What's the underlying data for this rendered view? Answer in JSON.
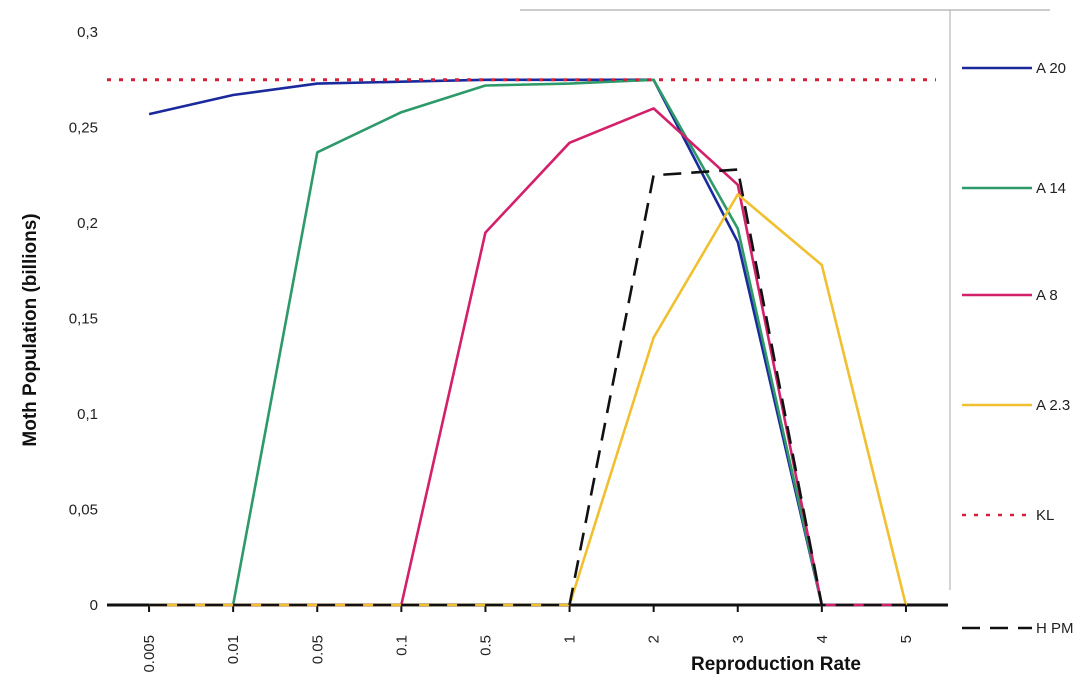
{
  "chart_data": {
    "type": "line",
    "xlabel": "Reproduction Rate",
    "ylabel": "Moth Population (billions)",
    "categories": [
      "0.005",
      "0.01",
      "0.05",
      "0.1",
      "0.5",
      "1",
      "2",
      "3",
      "4",
      "5"
    ],
    "ylim": [
      0,
      0.3
    ],
    "yticks": [
      "0",
      "0,05",
      "0,1",
      "0,15",
      "0,2",
      "0,25",
      "0,3"
    ],
    "ytick_values": [
      0,
      0.05,
      0.1,
      0.15,
      0.2,
      0.25,
      0.3
    ],
    "grid": false,
    "legend_position": "right",
    "series": [
      {
        "name": "A 20",
        "color": "#1a2a9c",
        "dash": "solid",
        "values": [
          0.257,
          0.267,
          0.273,
          0.274,
          0.275,
          0.275,
          0.275,
          0.19,
          0,
          0
        ]
      },
      {
        "name": "A 14",
        "color": "#2e9a6a",
        "dash": "solid",
        "values": [
          0,
          0,
          0.237,
          0.258,
          0.272,
          0.273,
          0.275,
          0.197,
          0,
          0
        ]
      },
      {
        "name": "A 8",
        "color": "#d4206a",
        "dash": "solid",
        "values": [
          0,
          0,
          0,
          0,
          0.195,
          0.242,
          0.26,
          0.22,
          0,
          0
        ]
      },
      {
        "name": "A 2.3",
        "color": "#f0c030",
        "dash": "solid",
        "values": [
          0,
          0,
          0,
          0,
          0,
          0,
          0.14,
          0.215,
          0.178,
          0
        ]
      },
      {
        "name": "KL",
        "color": "#d4203a",
        "dash": "dotted",
        "constant": 0.275
      },
      {
        "name": "H PM",
        "color": "#111111",
        "dash": "dashed",
        "values": [
          0,
          0,
          0,
          0,
          0,
          0,
          0.225,
          0.228,
          0,
          0
        ]
      }
    ]
  }
}
